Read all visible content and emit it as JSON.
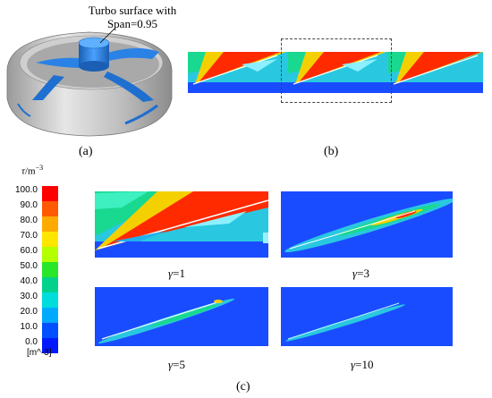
{
  "panel_a": {
    "label": "(a)",
    "annotation_line1": "Turbo surface with",
    "annotation_line2": "Span=0.95"
  },
  "panel_b": {
    "label": "(b)"
  },
  "panel_c": {
    "label": "(c)",
    "colorbar": {
      "title_symbol": "τ",
      "title_unit": "/m",
      "title_exp": "−3",
      "unit_label": "[m^-3]",
      "ticks": [
        "100.0",
        "90.0",
        "80.0",
        "70.0",
        "60.0",
        "50.0",
        "40.0",
        "30.0",
        "20.0",
        "10.0",
        "0.0"
      ],
      "colors": [
        "#ff0000",
        "#ff5a00",
        "#ffaa00",
        "#ffe600",
        "#b4ff00",
        "#28e628",
        "#00d28c",
        "#00dcdc",
        "#00aaff",
        "#0050ff",
        "#0019ff"
      ]
    },
    "captions": [
      {
        "symbol": "γ",
        "value": "=1"
      },
      {
        "symbol": "γ",
        "value": "=3"
      },
      {
        "symbol": "γ",
        "value": "=5"
      },
      {
        "symbol": "γ",
        "value": "=10"
      }
    ]
  }
}
